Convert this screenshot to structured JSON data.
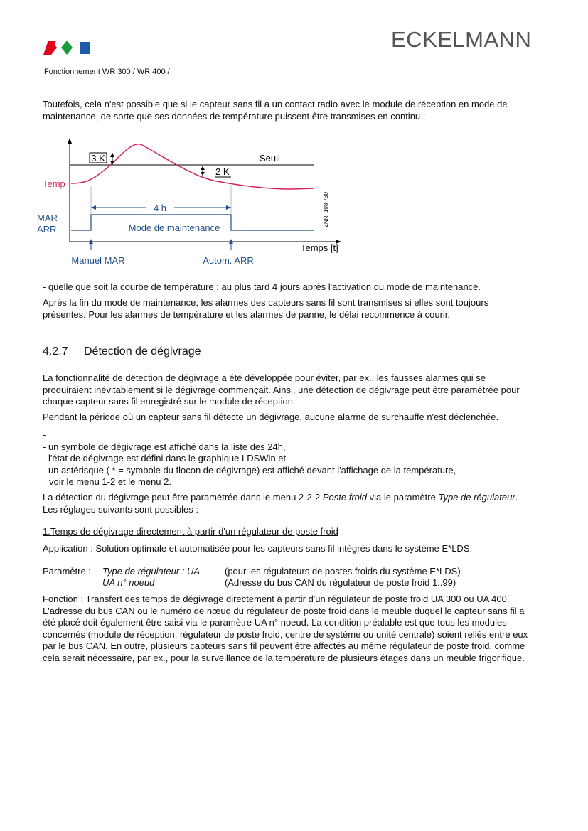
{
  "header": {
    "brand": "ECKELMANN",
    "subtitle": "Fonctionnement WR 300 / WR 400 /"
  },
  "intro": "Toutefois, cela n'est possible que si le capteur sans fil a un contact radio avec le module de réception en mode de maintenance, de sorte que ses données de température puissent être transmises en continu :",
  "figure": {
    "k3": "3 K",
    "threshold": "Seuil",
    "k2": "2 K",
    "temp": "Temp",
    "duration": "4 h",
    "on": "MAR",
    "off": "ARR",
    "mode": "Mode de maintenance",
    "ref": "ZNR. 108 730",
    "time": "Temps [t]",
    "manual": "Manuel MAR",
    "auto": "Autom. ARR"
  },
  "after_figure": [
    "- quelle que soit la courbe de température : au plus tard 4 jours après l'activation du mode de maintenance.",
    "Après la fin du mode de maintenance, les alarmes des capteurs sans fil sont transmises si elles sont toujours présentes. Pour les alarmes de température et les alarmes de panne, le délai recommence à courir."
  ],
  "section": {
    "number": "4.2.7",
    "title": "Détection de dégivrage",
    "paragraphs": [
      "La fonctionnalité de détection de dégivrage a été développée pour éviter, par ex., les fausses alarmes qui se produiraient inévitablement si le dégivrage commençait. Ainsi, une détection de dégivrage peut être paramétrée pour chaque capteur sans fil enregistré sur le module de réception.",
      "Pendant la période où un capteur sans fil détecte un dégivrage, aucune alarme de surchauffe n'est déclenchée."
    ],
    "list": [
      "-",
      "- un symbole de dégivrage est affiché dans la liste des 24h,",
      "- l'état de dégivrage est défini dans le graphique LDSWin et",
      "- un astérisque ( * = symbole du flocon de dégivrage) est affiché devant l'affichage de la température,",
      "voir le menu 1-2 et le menu 2."
    ],
    "setting": [
      "La détection du dégivrage peut être paramétrée dans le menu 2-2-2 ",
      "Poste froid",
      " via le paramètre ",
      "Type de régulateur",
      ". Les réglages suivants sont possibles :"
    ],
    "subheading": "1.Temps de dégivrage directement à partir d'un régulateur de poste froid",
    "application": "Application : Solution optimale et automatisée pour les capteurs sans fil intégrés dans le système E*LDS.",
    "parameters": {
      "label": "Paramètre :",
      "rows": [
        [
          "Type de régulateur : UA",
          "(pour les régulateurs de postes froids du système E*LDS)"
        ],
        [
          "UA n° noeud",
          "(Adresse du bus CAN du régulateur de poste froid 1..99)"
        ]
      ]
    },
    "function": "Fonction : Transfert des temps de dégivrage directement à partir d'un régulateur de poste froid UA 300 ou UA 400. L'adresse du bus CAN ou le numéro de nœud du régulateur de poste froid dans le meuble duquel le capteur sans fil a été placé doit également être saisi via le paramètre UA n° noeud. La condition préalable est que tous les modules concernés (module de réception, régulateur de poste froid, centre de système ou unité centrale) soient reliés entre eux par le bus CAN. En outre, plusieurs capteurs sans fil peuvent être affectés au même régulateur de poste froid, comme cela serait nécessaire, par ex., pour la surveillance de la température de plusieurs étages dans un meuble frigorifique."
  }
}
